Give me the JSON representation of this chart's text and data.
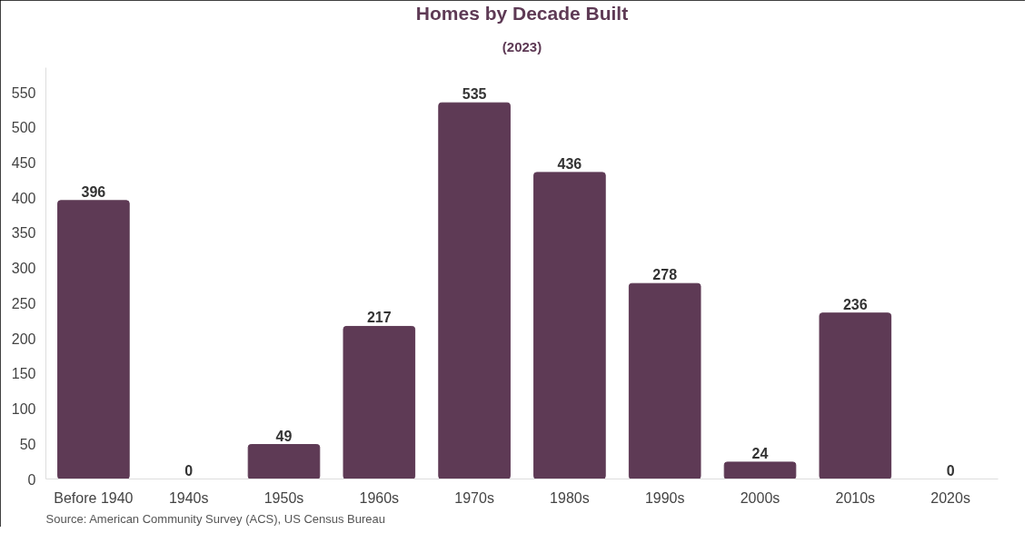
{
  "chart_data": {
    "type": "bar",
    "title": "Homes by Decade Built",
    "subtitle": "(2023)",
    "categories": [
      "Before 1940",
      "1940s",
      "1950s",
      "1960s",
      "1970s",
      "1980s",
      "1990s",
      "2000s",
      "2010s",
      "2020s"
    ],
    "values": [
      396,
      0,
      49,
      217,
      535,
      436,
      278,
      24,
      236,
      0
    ],
    "color": "#5e3a55",
    "ylim": [
      0,
      585
    ],
    "yticks": [
      0,
      50,
      100,
      150,
      200,
      250,
      300,
      350,
      400,
      450,
      500,
      550
    ],
    "grid": false,
    "data_labels": true,
    "annotations": [
      "Source: American Community Survey (ACS), US Census Bureau"
    ]
  }
}
